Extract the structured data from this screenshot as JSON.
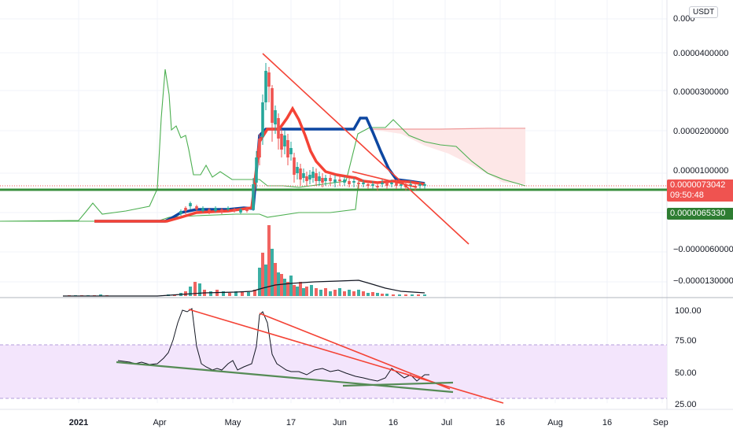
{
  "currency_button": "USDT",
  "price_axis_labels": [
    "0.0000400000",
    "0.0000300000",
    "0.0000200000",
    "0.0000100000",
    "−0.0000060000",
    "−0.0000130000"
  ],
  "top_partial_label": "0.000",
  "current_price": "0.0000073042",
  "countdown": "09:50:48",
  "support_price": "0.0000065330",
  "rsi_axis_labels": [
    "100.00",
    "75.00",
    "50.00",
    "25.00"
  ],
  "time_axis_labels": [
    "2021",
    "Apr",
    "May",
    "17",
    "Jun",
    "16",
    "Jul",
    "16",
    "Aug",
    "16",
    "Sep"
  ],
  "colors": {
    "up": "#26a69a",
    "down": "#ef5350",
    "support": "#388e3c",
    "ma_blue": "#0d47a1",
    "ma_red": "#f44336",
    "band": "#4caf50",
    "rsi_band": "#f3e5fc",
    "trendline": "#f44336"
  },
  "chart_data": {
    "type": "line",
    "title": "",
    "ylabel": "",
    "xlabel": "",
    "price_range": [
      -1.6e-05,
      4.6e-05
    ],
    "price_series_approx": {
      "x": [
        "2021-02-20",
        "2021-03-20",
        "2021-04-01",
        "2021-04-10",
        "2021-04-20",
        "2021-05-01",
        "2021-05-06",
        "2021-05-08",
        "2021-05-10",
        "2021-05-12",
        "2021-05-15",
        "2021-05-20",
        "2021-06-01",
        "2021-06-10",
        "2021-06-16",
        "2021-06-24"
      ],
      "y": [
        2e-07,
        2e-07,
        2.5e-06,
        2.8e-06,
        3e-06,
        3e-06,
        1.3e-05,
        2.2e-05,
        3.5e-05,
        3e-05,
        1.8e-05,
        8e-06,
        8e-06,
        7e-06,
        7.2e-06,
        7.3042e-06
      ]
    },
    "support_level": 6.533e-06,
    "rsi_range": [
      25,
      100
    ],
    "rsi_band": [
      30,
      70
    ],
    "rsi_series_approx": {
      "x": [
        "2021-03-01",
        "2021-03-20",
        "2021-04-05",
        "2021-04-12",
        "2021-04-20",
        "2021-05-01",
        "2021-05-10",
        "2021-05-15",
        "2021-05-25",
        "2021-06-05",
        "2021-06-16",
        "2021-06-24"
      ],
      "y": [
        58,
        55,
        70,
        100,
        55,
        55,
        97,
        52,
        45,
        45,
        53,
        47
      ]
    }
  }
}
